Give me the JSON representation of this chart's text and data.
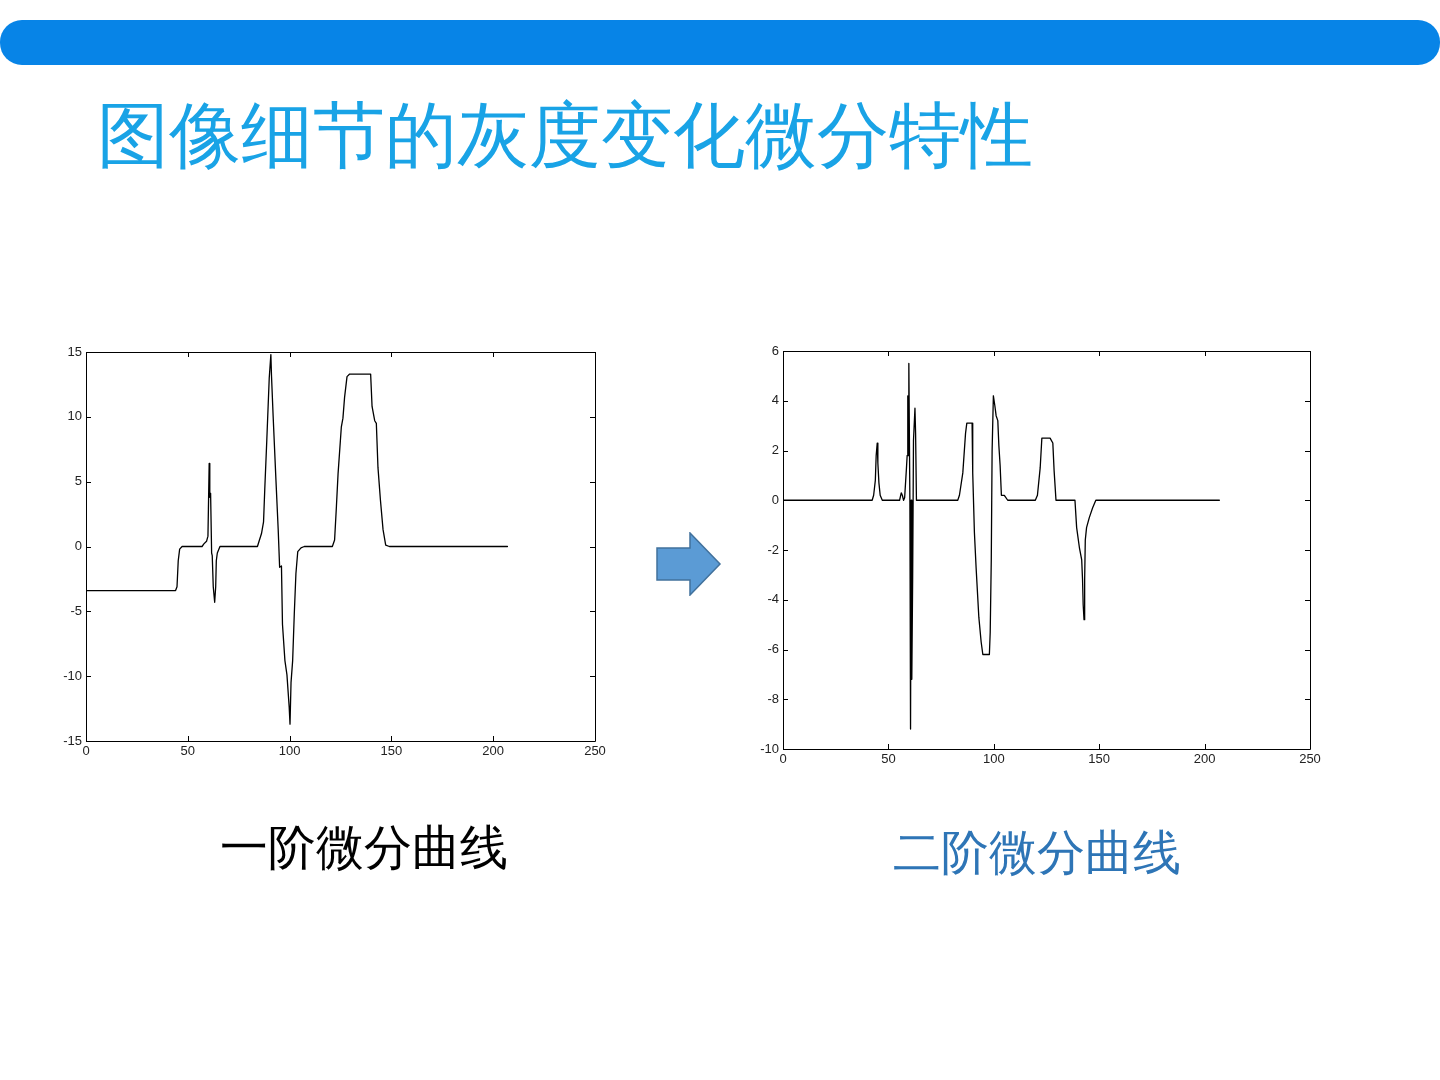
{
  "chart_data": [
    {
      "type": "line",
      "title": "图像细节的灰度变化微分特性",
      "annotations": [
        "一阶微分曲线"
      ],
      "xlim": [
        0,
        250
      ],
      "xticks": [
        0,
        50,
        100,
        150,
        200,
        250
      ],
      "ylim": [
        -15,
        15
      ],
      "yticks": [
        -15,
        -10,
        -5,
        0,
        5,
        10,
        15
      ],
      "marker": "none",
      "line_style": "solid",
      "series": [
        {
          "color": "#000000",
          "x": [
            0,
            44,
            44.7,
            45.3,
            46,
            47.2,
            57,
            57.9,
            59.2,
            59.9,
            60.5,
            60.8,
            61.2,
            61.7,
            62,
            62.5,
            63.2,
            63.7,
            64,
            64.5,
            65.8,
            84.2,
            85,
            86.2,
            87.2,
            87.8,
            88.8,
            90,
            90.8,
            91.1,
            91.9,
            93.3,
            94.4,
            95.1,
            96,
            96.5,
            97.7,
            98.7,
            99.8,
            100.2,
            100.7,
            101.5,
            102.3,
            103.1,
            104,
            105.6,
            107.2,
            121,
            122.1,
            123,
            123.8,
            125.4,
            126.2,
            127,
            128.2,
            129.5,
            139.8,
            140.5,
            141.8,
            142.6,
            143.4,
            144.6,
            145.9,
            147.2,
            149,
            207
          ],
          "values": [
            -3.4,
            -3.4,
            -3.1,
            -1.1,
            -0.2,
            0,
            0,
            0.2,
            0.4,
            0.8,
            6.4,
            3.8,
            4.1,
            -0.5,
            -0.7,
            -3.1,
            -4.3,
            -3.1,
            -1.1,
            -0.5,
            0,
            0,
            0.4,
            1.0,
            1.9,
            4.4,
            8.2,
            13,
            14.8,
            13.2,
            10.1,
            5.1,
            1.3,
            -1.6,
            -1.5,
            -6,
            -8.8,
            -9.9,
            -12.4,
            -13.7,
            -10.5,
            -8.8,
            -5.2,
            -2.1,
            -0.4,
            -0.1,
            0,
            0,
            0.5,
            3.1,
            5.6,
            9.2,
            9.9,
            11.5,
            13.1,
            13.3,
            13.3,
            10.8,
            9.7,
            9.5,
            6.1,
            3.6,
            1.3,
            0.1,
            0,
            0
          ]
        }
      ]
    },
    {
      "type": "line",
      "annotations": [
        "二阶微分曲线"
      ],
      "xlim": [
        0,
        250
      ],
      "xticks": [
        0,
        50,
        100,
        150,
        200,
        250
      ],
      "ylim": [
        -10,
        6
      ],
      "yticks": [
        -10,
        -8,
        -6,
        -4,
        -2,
        0,
        2,
        4,
        6
      ],
      "marker": "none",
      "line_style": "solid",
      "series": [
        {
          "color": "#000000",
          "x": [
            0,
            42.3,
            43,
            43.8,
            44.2,
            44.7,
            45,
            45.5,
            46.1,
            47.1,
            55.3,
            56.1,
            56.6,
            57.2,
            57.7,
            58.5,
            58.9,
            59.2,
            59.5,
            59.7,
            60.2,
            60.5,
            60.8,
            61.1,
            61.5,
            61.9,
            62.6,
            62.9,
            63.3,
            82.9,
            83.7,
            85.3,
            86.6,
            87.2,
            89.7,
            90,
            90.8,
            91.6,
            92.9,
            94,
            94.8,
            97.9,
            98.3,
            98.8,
            99.2,
            99.8,
            100.5,
            101.1,
            101.9,
            102.4,
            103,
            103.6,
            105,
            106.6,
            119.7,
            120.7,
            122,
            122.8,
            126.7,
            128,
            128.6,
            129.5,
            138.5,
            139.3,
            140.6,
            141.7,
            142.1,
            142.4,
            142.8,
            143.1,
            143.4,
            144,
            145.3,
            146.9,
            148.4,
            207
          ],
          "values": [
            0,
            0,
            0.2,
            0.8,
            1.8,
            2.3,
            1.5,
            0.7,
            0.2,
            0,
            0,
            0.3,
            0.2,
            0,
            0.1,
            1.2,
            1.8,
            4.2,
            1.8,
            5.5,
            -0.1,
            -9.2,
            0,
            -7.2,
            -3.2,
            2.4,
            3.7,
            2.7,
            0,
            0,
            0.2,
            1.1,
            2.7,
            3.1,
            3.1,
            1.1,
            -1.3,
            -2.7,
            -4.7,
            -5.7,
            -6.2,
            -6.2,
            -5.3,
            -2.4,
            2,
            4.2,
            3.8,
            3.4,
            3.2,
            2.2,
            1.4,
            0.2,
            0.2,
            0,
            0,
            0.2,
            1.3,
            2.5,
            2.5,
            2.3,
            1.2,
            0,
            0,
            -1.1,
            -1.9,
            -2.4,
            -3.2,
            -4.2,
            -4.8,
            -3.2,
            -1.6,
            -1.1,
            -0.7,
            -0.3,
            0,
            0
          ]
        }
      ]
    }
  ]
}
